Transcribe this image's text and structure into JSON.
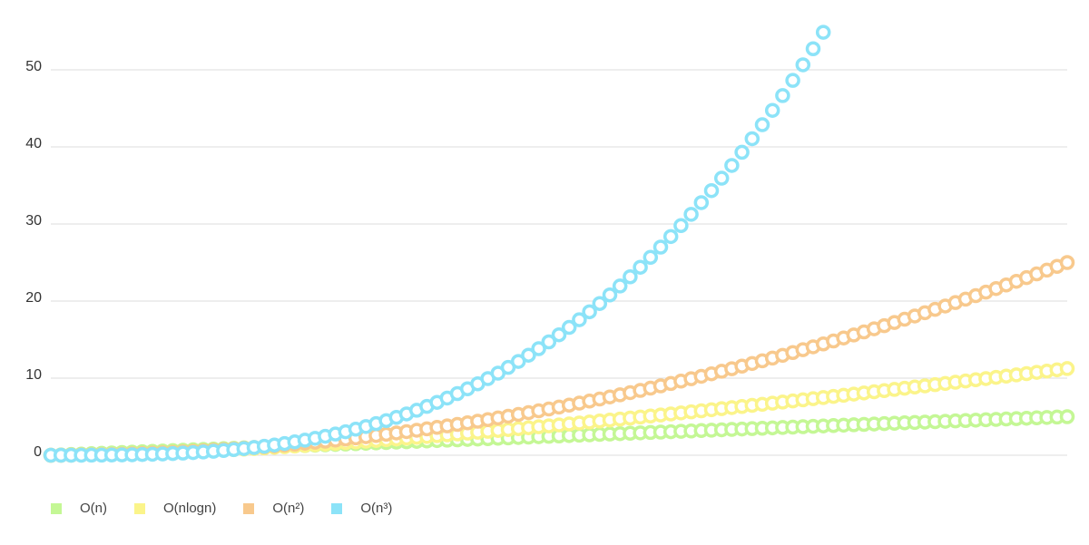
{
  "chart_data": {
    "type": "line",
    "x_start": 0,
    "x_end": 5,
    "x_step": 0.05,
    "y_ticks": [
      0,
      10,
      20,
      30,
      40,
      50
    ],
    "ylim": [
      0,
      55
    ],
    "grid": true,
    "legend_position": "bottom-left",
    "series": [
      {
        "name": "O(n)",
        "color": "#c4f795",
        "function": "n",
        "values": [
          0,
          0.5,
          1,
          1.5,
          2,
          2.5,
          3,
          3.5,
          4,
          4.5,
          5
        ]
      },
      {
        "name": "O(nlogn)",
        "color": "#fbf48a",
        "function": "nlogn",
        "values": [
          0,
          0.1,
          0.71,
          1.37,
          2.13,
          2.95,
          3.82,
          4.74,
          5.7,
          6.7,
          7.8
        ]
      },
      {
        "name": "O(n²)",
        "color": "#f8c98d",
        "function": "n^2",
        "values": [
          0,
          0.25,
          1,
          2.25,
          4,
          6.25,
          9,
          12.25,
          16,
          20.25,
          24.5
        ]
      },
      {
        "name": "O(n³)",
        "color": "#8ce3f8",
        "function": "n^3",
        "values": [
          0,
          0.13,
          1,
          3.38,
          8,
          15.63,
          27,
          42.88,
          54.8
        ]
      }
    ]
  }
}
